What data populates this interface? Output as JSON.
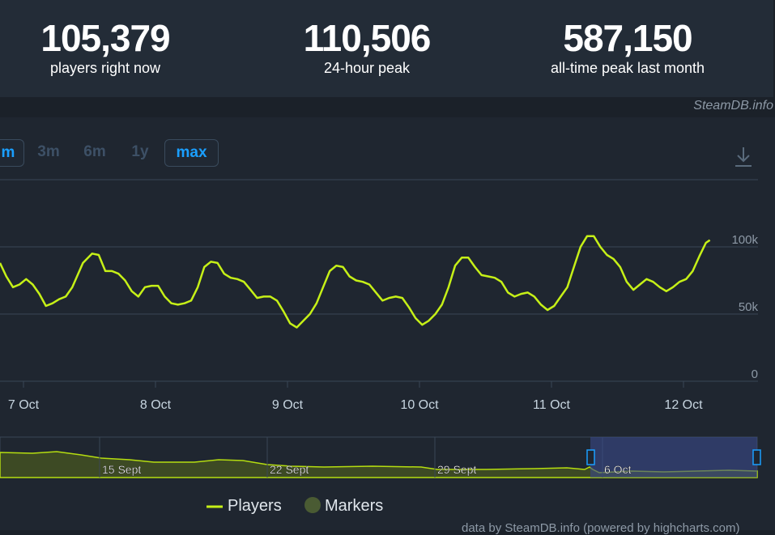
{
  "stats": [
    {
      "value": "105,379",
      "label": "players right now"
    },
    {
      "value": "110,506",
      "label": "24-hour peak"
    },
    {
      "value": "587,150",
      "label": "all-time peak last month"
    }
  ],
  "credit_top": "SteamDB.info",
  "range_buttons": [
    {
      "label": "m",
      "boxed": true,
      "active": true
    },
    {
      "label": "3m",
      "boxed": false,
      "active": false
    },
    {
      "label": "6m",
      "boxed": false,
      "active": false
    },
    {
      "label": "1y",
      "boxed": false,
      "active": false
    },
    {
      "label": "max",
      "boxed": true,
      "active": true
    }
  ],
  "chart_data": {
    "type": "line",
    "title": "",
    "xlabel": "",
    "ylabel": "",
    "x_tick_labels": [
      "7 Oct",
      "8 Oct",
      "9 Oct",
      "10 Oct",
      "11 Oct",
      "12 Oct"
    ],
    "y_tick_labels": [
      "0",
      "50k",
      "100k"
    ],
    "ylim": [
      0,
      150000
    ],
    "x_range_days": [
      6.8,
      12.6
    ],
    "grid": true,
    "legend_position": "bottom-center",
    "series": [
      {
        "name": "Players",
        "color": "#c6f017",
        "points": [
          [
            6.8,
            88000
          ],
          [
            6.87,
            78000
          ],
          [
            6.92,
            70000
          ],
          [
            6.97,
            72000
          ],
          [
            7.02,
            76000
          ],
          [
            7.07,
            72000
          ],
          [
            7.12,
            65000
          ],
          [
            7.17,
            56000
          ],
          [
            7.22,
            58000
          ],
          [
            7.27,
            61000
          ],
          [
            7.32,
            63000
          ],
          [
            7.37,
            70000
          ],
          [
            7.45,
            88000
          ],
          [
            7.52,
            95000
          ],
          [
            7.57,
            94000
          ],
          [
            7.62,
            82000
          ],
          [
            7.67,
            82000
          ],
          [
            7.72,
            80000
          ],
          [
            7.77,
            75000
          ],
          [
            7.82,
            67000
          ],
          [
            7.87,
            63000
          ],
          [
            7.92,
            70000
          ],
          [
            7.97,
            71000
          ],
          [
            8.02,
            71000
          ],
          [
            8.07,
            63000
          ],
          [
            8.12,
            58000
          ],
          [
            8.17,
            57000
          ],
          [
            8.22,
            58000
          ],
          [
            8.27,
            60000
          ],
          [
            8.32,
            70000
          ],
          [
            8.37,
            85000
          ],
          [
            8.42,
            89000
          ],
          [
            8.47,
            88000
          ],
          [
            8.52,
            80000
          ],
          [
            8.57,
            77000
          ],
          [
            8.62,
            76000
          ],
          [
            8.67,
            74000
          ],
          [
            8.72,
            68000
          ],
          [
            8.77,
            62000
          ],
          [
            8.82,
            63000
          ],
          [
            8.87,
            63000
          ],
          [
            8.92,
            60000
          ],
          [
            8.97,
            52000
          ],
          [
            9.02,
            43000
          ],
          [
            9.07,
            40000
          ],
          [
            9.12,
            45000
          ],
          [
            9.17,
            50000
          ],
          [
            9.22,
            58000
          ],
          [
            9.27,
            70000
          ],
          [
            9.32,
            82000
          ],
          [
            9.37,
            86000
          ],
          [
            9.42,
            85000
          ],
          [
            9.47,
            78000
          ],
          [
            9.52,
            75000
          ],
          [
            9.57,
            74000
          ],
          [
            9.62,
            72000
          ],
          [
            9.67,
            66000
          ],
          [
            9.72,
            60000
          ],
          [
            9.77,
            62000
          ],
          [
            9.82,
            63000
          ],
          [
            9.87,
            62000
          ],
          [
            9.92,
            55000
          ],
          [
            9.97,
            47000
          ],
          [
            10.02,
            42000
          ],
          [
            10.07,
            45000
          ],
          [
            10.12,
            50000
          ],
          [
            10.17,
            57000
          ],
          [
            10.22,
            70000
          ],
          [
            10.27,
            86000
          ],
          [
            10.32,
            92000
          ],
          [
            10.37,
            92000
          ],
          [
            10.42,
            85000
          ],
          [
            10.47,
            79000
          ],
          [
            10.52,
            78000
          ],
          [
            10.57,
            77000
          ],
          [
            10.62,
            74000
          ],
          [
            10.67,
            66000
          ],
          [
            10.72,
            63000
          ],
          [
            10.77,
            65000
          ],
          [
            10.82,
            66000
          ],
          [
            10.87,
            63000
          ],
          [
            10.92,
            57000
          ],
          [
            10.97,
            53000
          ],
          [
            11.02,
            56000
          ],
          [
            11.07,
            63000
          ],
          [
            11.12,
            70000
          ],
          [
            11.17,
            85000
          ],
          [
            11.22,
            100000
          ],
          [
            11.27,
            108000
          ],
          [
            11.32,
            108000
          ],
          [
            11.37,
            100000
          ],
          [
            11.42,
            94000
          ],
          [
            11.47,
            91000
          ],
          [
            11.52,
            85000
          ],
          [
            11.57,
            74000
          ],
          [
            11.62,
            68000
          ],
          [
            11.67,
            72000
          ],
          [
            11.72,
            76000
          ],
          [
            11.77,
            74000
          ],
          [
            11.82,
            70000
          ],
          [
            11.87,
            67000
          ],
          [
            11.92,
            70000
          ],
          [
            11.97,
            74000
          ],
          [
            12.02,
            76000
          ],
          [
            12.07,
            82000
          ],
          [
            12.12,
            93000
          ],
          [
            12.17,
            103000
          ],
          [
            12.2,
            105000
          ]
        ]
      }
    ],
    "navigator": {
      "tick_labels": [
        "15 Sept",
        "22 Sept",
        "29 Sept",
        "6 Oct"
      ],
      "selected_range": "6 Oct – 12 Oct"
    }
  },
  "legend": [
    {
      "name": "Players",
      "color": "#c6f017",
      "symbol": "line"
    },
    {
      "name": "Markers",
      "color": "#4a5b33",
      "symbol": "circle"
    }
  ],
  "credit_bottom": "data by SteamDB.info (powered by highcharts.com)"
}
